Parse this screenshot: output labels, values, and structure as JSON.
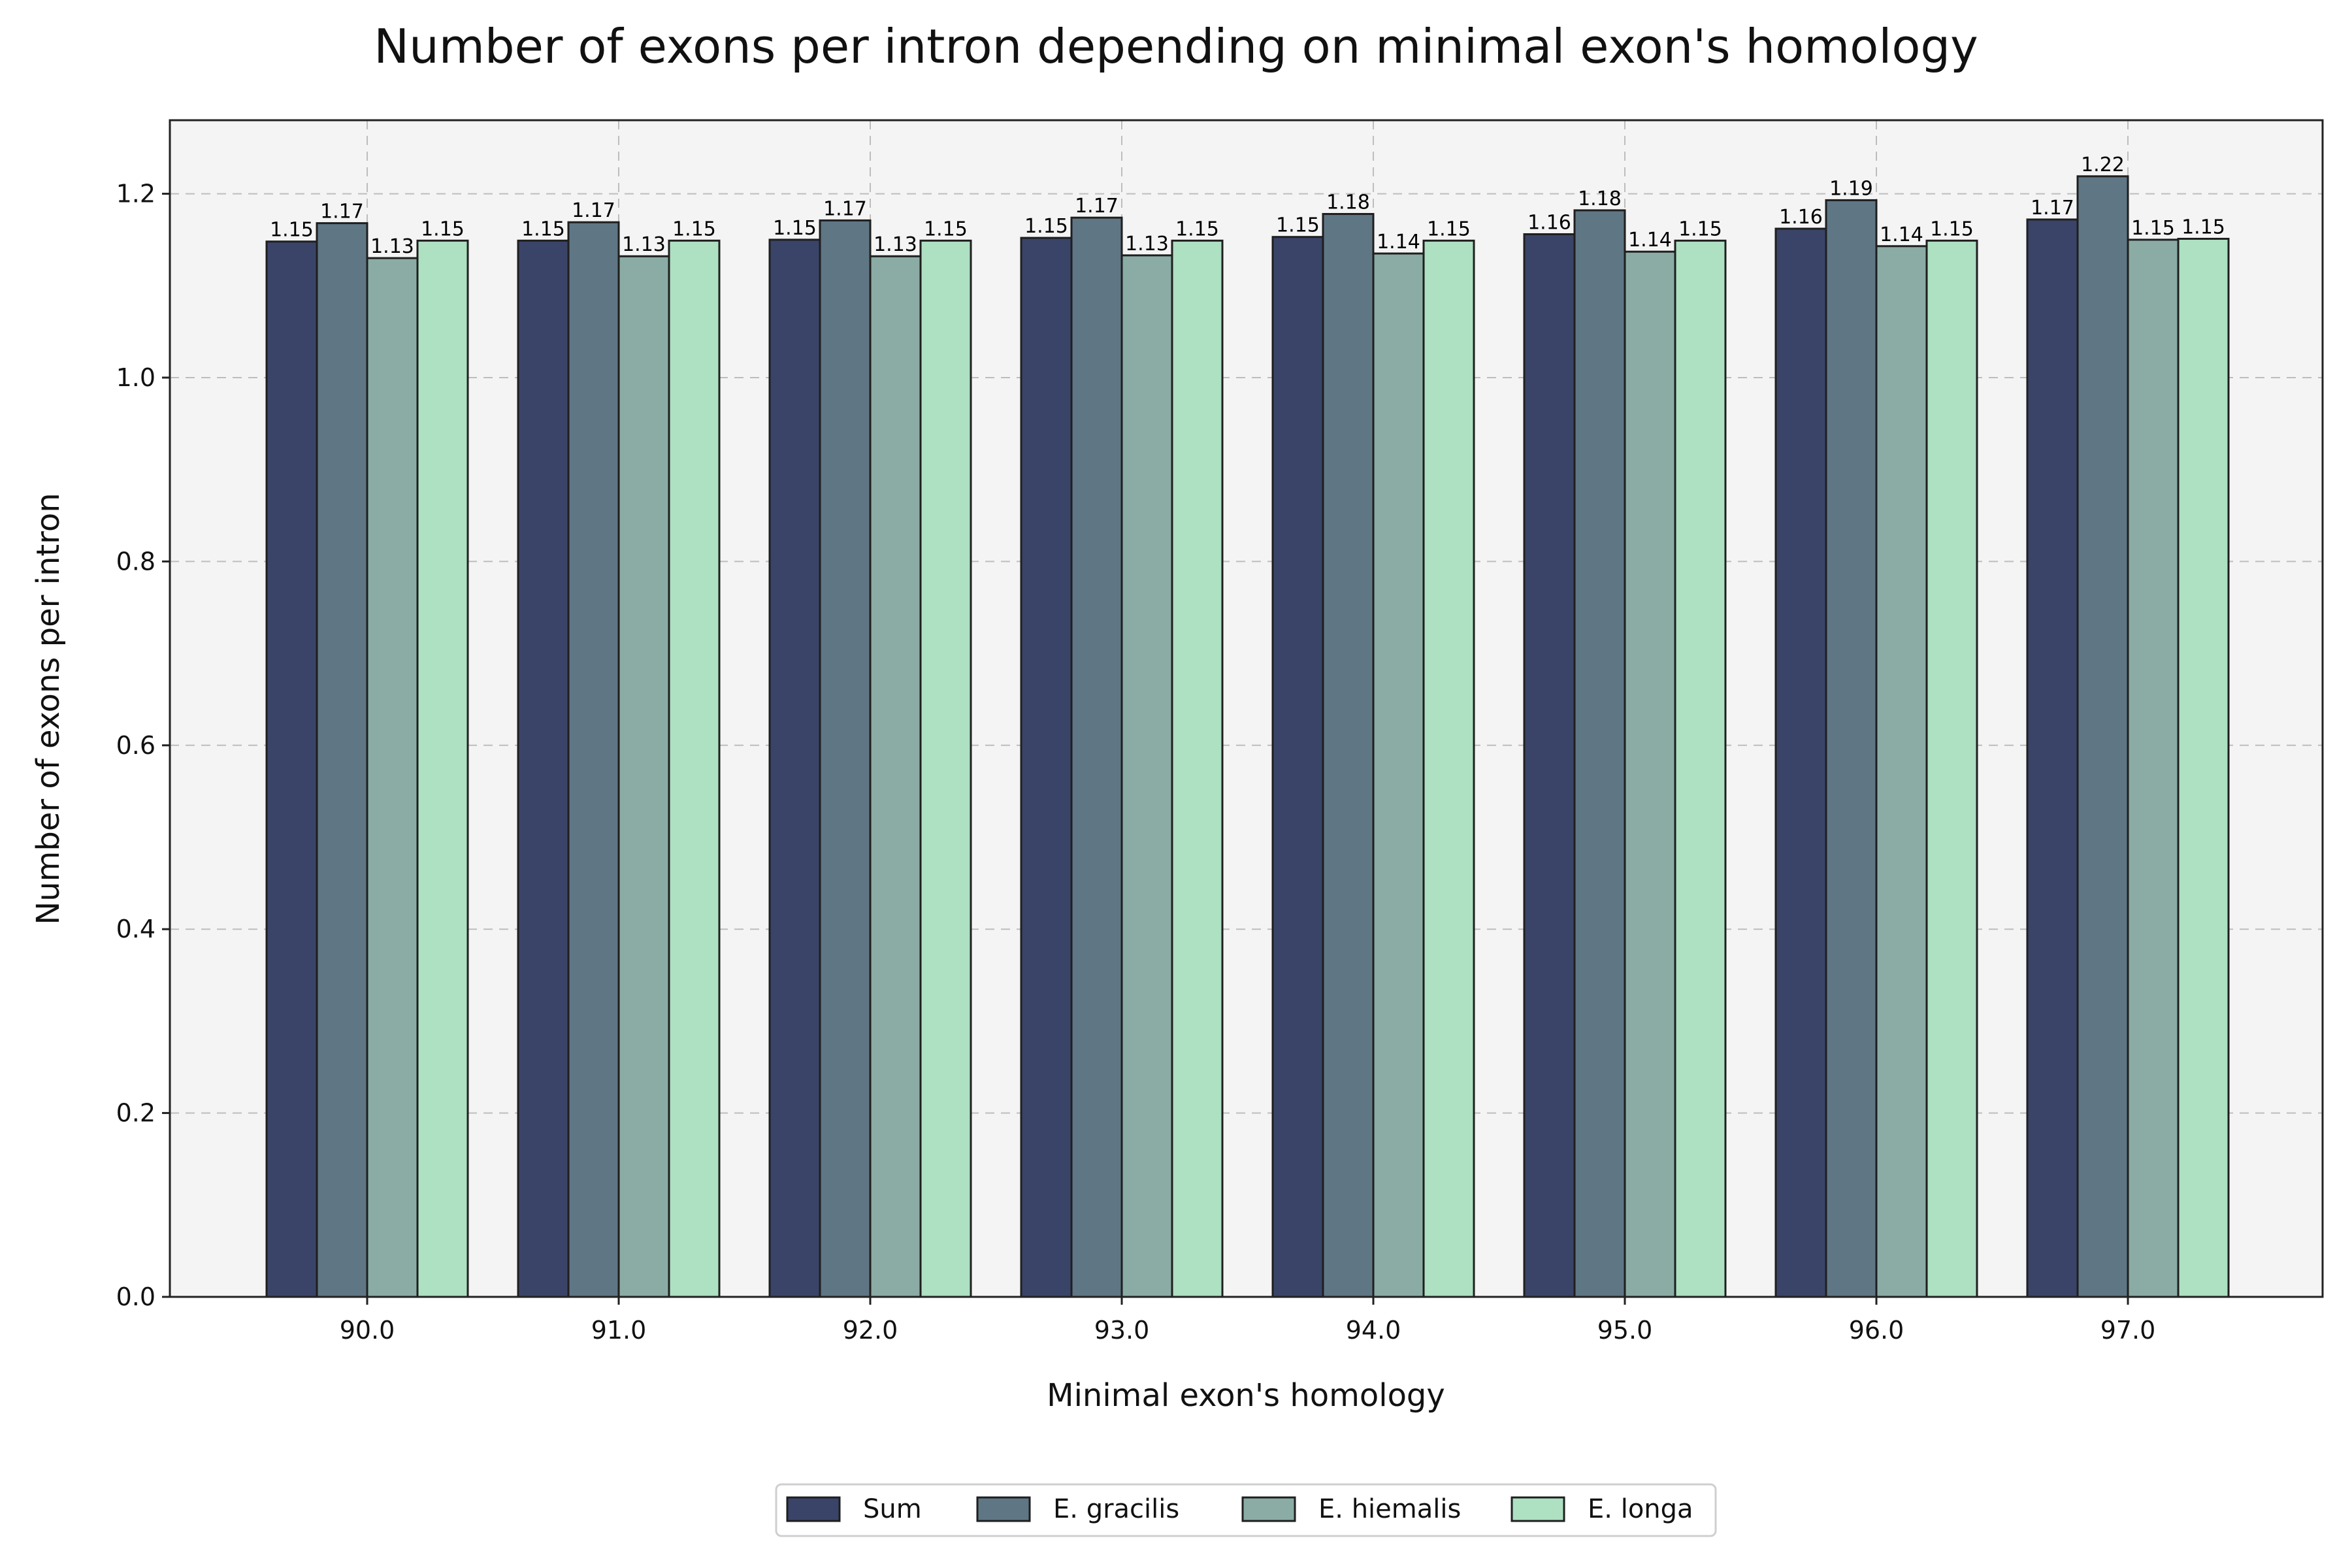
{
  "chart_data": {
    "type": "bar",
    "title": "Number of exons per intron depending on minimal exon's homology",
    "xlabel": "Minimal exon's homology",
    "ylabel": "Number of exons per intron",
    "categories": [
      "90.0",
      "91.0",
      "92.0",
      "93.0",
      "94.0",
      "95.0",
      "96.0",
      "97.0"
    ],
    "ylim": [
      0,
      1.28
    ],
    "yticks": [
      "0.0",
      "0.2",
      "0.4",
      "0.6",
      "0.8",
      "1.0",
      "1.2"
    ],
    "grid": true,
    "legend_position": "bottom-center",
    "series": [
      {
        "name": "Sum",
        "color": "#3a4468",
        "values": [
          1.148,
          1.149,
          1.15,
          1.152,
          1.153,
          1.156,
          1.162,
          1.172
        ],
        "labels": [
          "1.15",
          "1.15",
          "1.15",
          "1.15",
          "1.15",
          "1.16",
          "1.16",
          "1.17"
        ]
      },
      {
        "name": "E. gracilis",
        "color": "#5f7685",
        "values": [
          1.168,
          1.169,
          1.171,
          1.174,
          1.178,
          1.182,
          1.193,
          1.219
        ],
        "labels": [
          "1.17",
          "1.17",
          "1.17",
          "1.17",
          "1.18",
          "1.18",
          "1.19",
          "1.22"
        ]
      },
      {
        "name": "E. hiemalis",
        "color": "#8aaca5",
        "values": [
          1.13,
          1.132,
          1.132,
          1.133,
          1.135,
          1.137,
          1.143,
          1.15
        ],
        "labels": [
          "1.13",
          "1.13",
          "1.13",
          "1.13",
          "1.14",
          "1.14",
          "1.14",
          "1.15"
        ]
      },
      {
        "name": "E. longa",
        "color": "#aee0c2",
        "values": [
          1.149,
          1.149,
          1.149,
          1.149,
          1.149,
          1.149,
          1.149,
          1.151
        ],
        "labels": [
          "1.15",
          "1.15",
          "1.15",
          "1.15",
          "1.15",
          "1.15",
          "1.15",
          "1.15"
        ]
      }
    ]
  }
}
